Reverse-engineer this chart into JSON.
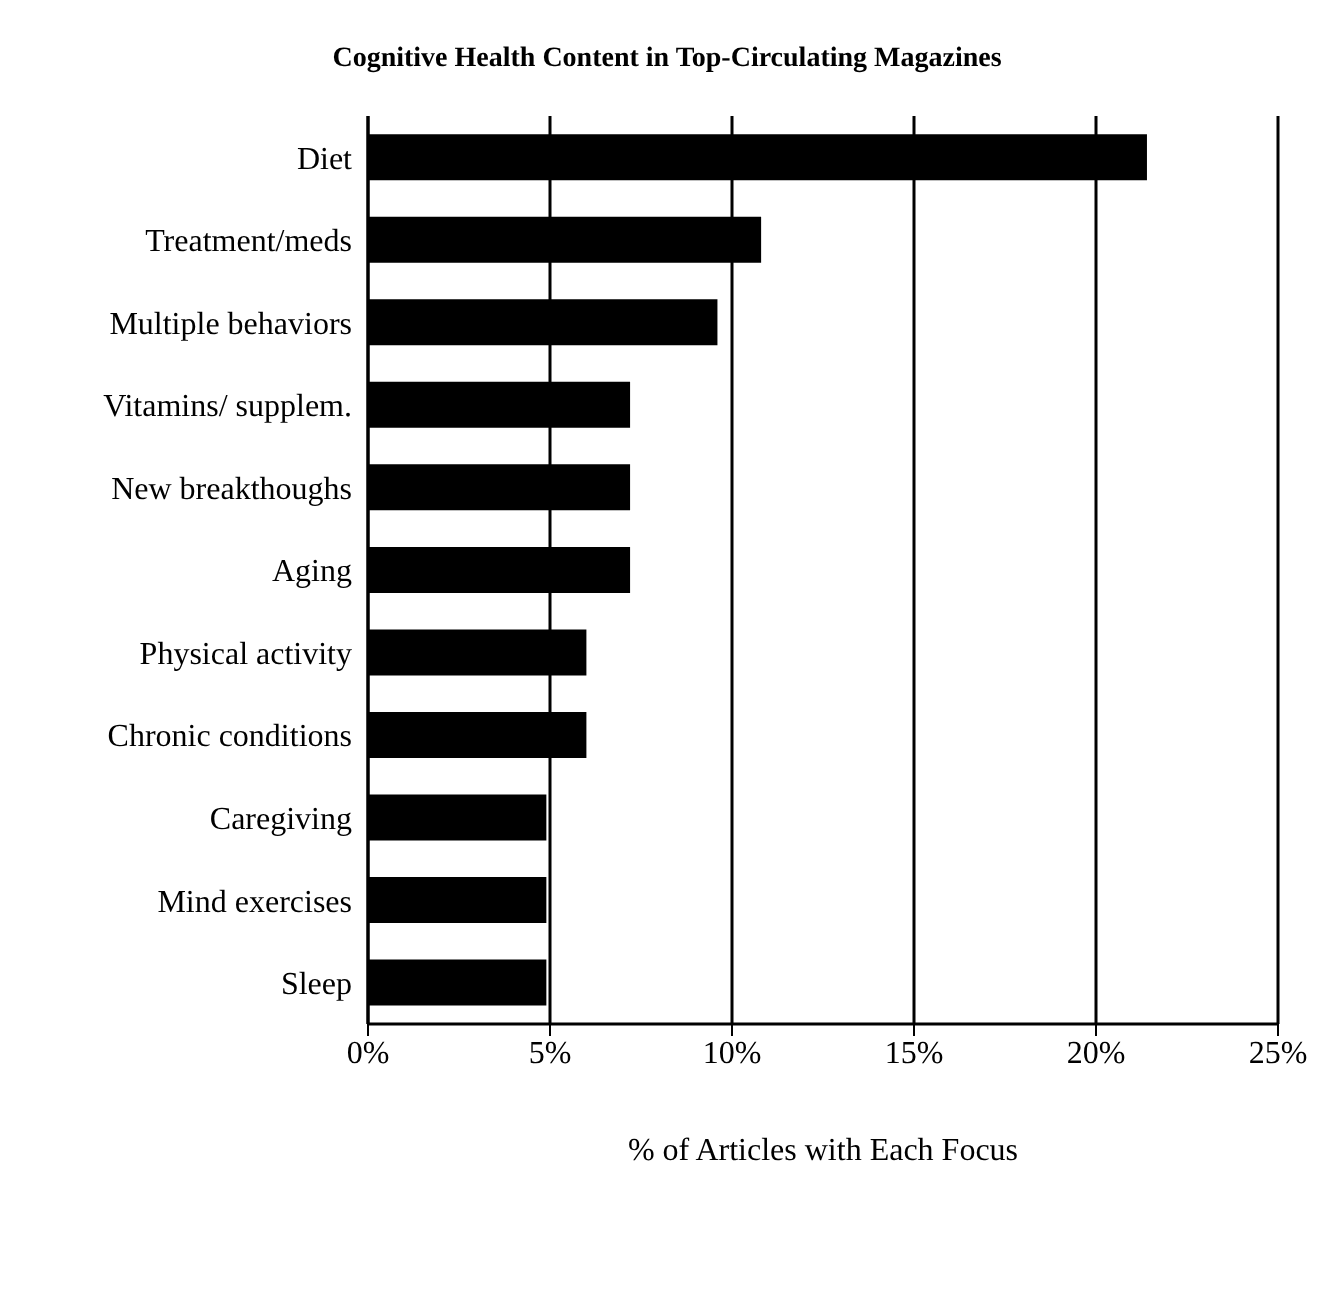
{
  "chart_data": {
    "type": "bar",
    "orientation": "horizontal",
    "title": "Cognitive Health Content in Top-Circulating Magazines",
    "xlabel": "% of Articles with Each Focus",
    "categories": [
      "Diet",
      "Treatment/meds",
      "Multiple behaviors",
      "Vitamins/ supplem.",
      "New breakthoughs",
      "Aging",
      "Physical activity",
      "Chronic conditions",
      "Caregiving",
      "Mind exercises",
      "Sleep"
    ],
    "values": [
      21.4,
      10.8,
      9.6,
      7.2,
      7.2,
      7.2,
      6.0,
      6.0,
      4.9,
      4.9,
      4.9
    ],
    "color": "#000000",
    "xlim": [
      0,
      25
    ],
    "xticks": [
      {
        "value": 0,
        "label": "0%"
      },
      {
        "value": 5,
        "label": "5%"
      },
      {
        "value": 10,
        "label": "10%"
      },
      {
        "value": 15,
        "label": "15%"
      },
      {
        "value": 20,
        "label": "20%"
      },
      {
        "value": 25,
        "label": "25%"
      }
    ],
    "grid": "x"
  }
}
